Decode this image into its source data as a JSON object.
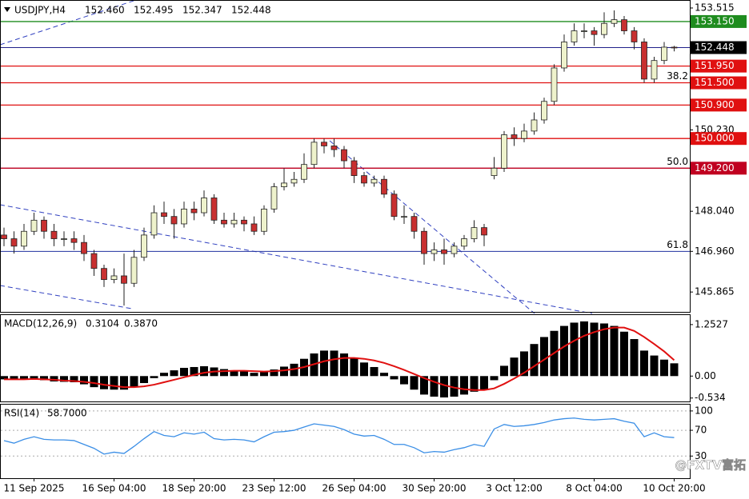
{
  "watermark": "@FXTV富拓",
  "chart_data": [
    {
      "type": "candlestick",
      "title": "USDJPY,H4",
      "categories": [
        null,
        null,
        null,
        "11 Sep 2025",
        null,
        null,
        null,
        null,
        null,
        null,
        null,
        "16 Sep 04:00",
        null,
        null,
        null,
        null,
        null,
        null,
        null,
        "18 Sep 20:00",
        null,
        null,
        null,
        null,
        null,
        null,
        null,
        "23 Sep 12:00",
        null,
        null,
        null,
        null,
        null,
        null,
        null,
        "26 Sep 04:00",
        null,
        null,
        null,
        null,
        null,
        null,
        null,
        "30 Sep 20:00",
        null,
        null,
        null,
        null,
        null,
        null,
        null,
        "3 Oct 12:00",
        null,
        null,
        null,
        null,
        null,
        null,
        null,
        "8 Oct 04:00",
        null,
        null,
        null,
        null,
        null,
        null,
        null,
        "10 Oct 20:00"
      ],
      "open": [
        147.4,
        147.3,
        147.1,
        147.5,
        147.8,
        147.5,
        147.3,
        147.3,
        147.2,
        146.9,
        146.5,
        146.2,
        146.3,
        146.1,
        146.8,
        147.4,
        148.0,
        147.9,
        147.7,
        148.1,
        148.0,
        148.4,
        147.8,
        147.7,
        147.8,
        147.7,
        147.5,
        148.1,
        148.7,
        148.8,
        148.9,
        149.3,
        149.9,
        149.8,
        149.7,
        149.4,
        149.0,
        148.8,
        148.9,
        148.5,
        147.9,
        147.9,
        147.5,
        146.9,
        147.0,
        146.9,
        147.1,
        147.3,
        147.6,
        149.0,
        149.2,
        150.1,
        150.0,
        150.2,
        150.5,
        151.0,
        151.9,
        152.6,
        152.9,
        152.9,
        152.8,
        153.1,
        153.2,
        152.9,
        152.6,
        151.6,
        152.1,
        152.46
      ],
      "open_labels": [
        null,
        null,
        null,
        null,
        null,
        null,
        null,
        null,
        null,
        null,
        null,
        null,
        null,
        null,
        null,
        null,
        null,
        null,
        null,
        null,
        null,
        null,
        null,
        null,
        null,
        null,
        null,
        null,
        null,
        null,
        null,
        null,
        null,
        null,
        null,
        null,
        null,
        null,
        null,
        null,
        null,
        null,
        null,
        null,
        null,
        null,
        null,
        null,
        null,
        null,
        null,
        null,
        null,
        null,
        null,
        null,
        null,
        null,
        null,
        null,
        null,
        null,
        null,
        null,
        null,
        null,
        null,
        "152.460"
      ],
      "high": [
        147.6,
        147.5,
        147.7,
        148.0,
        147.9,
        147.7,
        147.5,
        147.5,
        147.4,
        147.0,
        146.6,
        146.5,
        146.9,
        147.0,
        147.6,
        148.2,
        148.3,
        148.1,
        148.3,
        148.3,
        148.6,
        148.5,
        148.0,
        148.0,
        147.9,
        147.9,
        148.2,
        148.8,
        149.2,
        149.1,
        149.6,
        150.0,
        150.0,
        150.0,
        149.8,
        149.5,
        149.1,
        149.0,
        149.0,
        148.6,
        148.2,
        148.0,
        147.6,
        147.2,
        147.3,
        147.2,
        147.4,
        147.8,
        147.7,
        149.5,
        150.2,
        150.3,
        150.4,
        150.7,
        151.1,
        152.0,
        152.8,
        153.1,
        153.1,
        153.0,
        153.4,
        153.45,
        153.3,
        153.0,
        152.7,
        152.2,
        152.6,
        152.495
      ],
      "low": [
        147.1,
        146.9,
        147.0,
        147.4,
        147.3,
        147.1,
        147.1,
        147.0,
        146.7,
        146.3,
        146.0,
        146.1,
        145.5,
        146.0,
        146.7,
        147.3,
        147.7,
        147.3,
        147.6,
        147.8,
        147.9,
        147.7,
        147.6,
        147.6,
        147.5,
        147.4,
        147.4,
        148.0,
        148.6,
        148.7,
        148.8,
        149.2,
        149.6,
        149.5,
        149.2,
        148.8,
        148.7,
        148.7,
        148.4,
        147.8,
        147.7,
        147.3,
        146.6,
        146.7,
        146.6,
        146.8,
        147.0,
        147.2,
        147.1,
        148.9,
        149.1,
        149.8,
        149.9,
        150.1,
        150.4,
        150.9,
        151.8,
        152.5,
        152.7,
        152.5,
        152.7,
        153.0,
        152.8,
        152.4,
        151.5,
        151.5,
        152.0,
        152.347
      ],
      "close": [
        147.3,
        147.1,
        147.5,
        147.8,
        147.5,
        147.3,
        147.3,
        147.2,
        146.9,
        146.5,
        146.2,
        146.3,
        146.1,
        146.8,
        147.4,
        148.0,
        147.9,
        147.7,
        148.1,
        148.0,
        148.4,
        147.8,
        147.7,
        147.8,
        147.7,
        147.5,
        148.1,
        148.7,
        148.8,
        148.9,
        149.3,
        149.9,
        149.8,
        149.7,
        149.4,
        149.0,
        148.8,
        148.9,
        148.5,
        147.9,
        147.9,
        147.5,
        146.9,
        147.0,
        146.9,
        147.1,
        147.3,
        147.6,
        147.4,
        149.2,
        150.1,
        150.0,
        150.2,
        150.5,
        151.0,
        151.9,
        152.6,
        152.9,
        152.9,
        152.8,
        153.1,
        153.2,
        152.9,
        152.6,
        151.6,
        152.1,
        152.46,
        152.448
      ],
      "up_color": "#eef2cc",
      "down_color": "#c83030",
      "wick_color": "#222222",
      "ylim": [
        145.33,
        153.73
      ],
      "yticks": [
        153.515,
        {
          "value": 150.23,
          "label": "150.230"
        },
        {
          "value": 148.04,
          "label": "148.040"
        },
        {
          "value": 146.96,
          "label": "146.960"
        },
        145.865
      ],
      "levels": [
        {
          "value": 153.15,
          "label": "153.150",
          "color": "#1e8c1e"
        },
        {
          "value": 151.95,
          "label": "151.950",
          "color": "#e01010"
        },
        {
          "value": 151.5,
          "label": "151.500",
          "color": "#e01010"
        },
        {
          "value": 150.9,
          "label": "150.900",
          "color": "#e01010"
        },
        {
          "value": 150.0,
          "label": "150.000",
          "color": "#e01010"
        },
        {
          "value": 149.2,
          "label": "149.200",
          "color": "#c00020"
        }
      ],
      "fib_levels": [
        {
          "label": "38.2",
          "price": 151.5
        },
        {
          "label": "50.0",
          "price": 149.2
        },
        {
          "label": "61.8",
          "price": 146.96
        }
      ],
      "fib_color": "#2030a0",
      "current_color": "#20208a"
    },
    {
      "type": "macd",
      "title": "MACD(12,26,9)",
      "histogram": [
        -0.08,
        -0.08,
        -0.07,
        -0.06,
        -0.1,
        -0.13,
        -0.14,
        -0.15,
        -0.2,
        -0.27,
        -0.32,
        -0.33,
        -0.33,
        -0.27,
        -0.17,
        -0.05,
        0.08,
        0.14,
        0.2,
        0.22,
        0.24,
        0.21,
        0.17,
        0.14,
        0.12,
        0.08,
        0.1,
        0.16,
        0.23,
        0.3,
        0.42,
        0.55,
        0.62,
        0.62,
        0.55,
        0.45,
        0.33,
        0.22,
        0.08,
        -0.08,
        -0.2,
        -0.33,
        -0.45,
        -0.5,
        -0.52,
        -0.5,
        -0.45,
        -0.38,
        -0.33,
        -0.1,
        0.25,
        0.45,
        0.6,
        0.78,
        0.95,
        1.1,
        1.22,
        1.3,
        1.33,
        1.3,
        1.28,
        1.22,
        1.08,
        0.9,
        0.62,
        0.5,
        0.4,
        0.3104
      ],
      "signal": [
        -0.08,
        -0.08,
        -0.08,
        -0.07,
        -0.08,
        -0.09,
        -0.11,
        -0.12,
        -0.14,
        -0.17,
        -0.21,
        -0.24,
        -0.27,
        -0.27,
        -0.25,
        -0.21,
        -0.15,
        -0.09,
        -0.03,
        0.03,
        0.08,
        0.11,
        0.12,
        0.13,
        0.13,
        0.12,
        0.11,
        0.12,
        0.14,
        0.17,
        0.22,
        0.29,
        0.36,
        0.41,
        0.44,
        0.44,
        0.42,
        0.38,
        0.32,
        0.24,
        0.15,
        0.05,
        -0.05,
        -0.14,
        -0.22,
        -0.28,
        -0.32,
        -0.34,
        -0.34,
        -0.3,
        -0.19,
        -0.06,
        0.08,
        0.24,
        0.4,
        0.56,
        0.72,
        0.86,
        0.98,
        1.07,
        1.14,
        1.18,
        1.18,
        1.1,
        0.95,
        0.78,
        0.6,
        0.387
      ],
      "signal_labels": [
        null,
        null,
        null,
        null,
        null,
        null,
        null,
        null,
        null,
        null,
        null,
        null,
        null,
        null,
        null,
        null,
        null,
        null,
        null,
        null,
        null,
        null,
        null,
        null,
        null,
        null,
        null,
        null,
        null,
        null,
        null,
        null,
        null,
        null,
        null,
        null,
        null,
        null,
        null,
        null,
        null,
        null,
        null,
        null,
        null,
        null,
        null,
        null,
        null,
        null,
        null,
        null,
        null,
        null,
        null,
        null,
        null,
        null,
        null,
        null,
        null,
        null,
        null,
        null,
        null,
        null,
        null,
        "0.3870"
      ],
      "histogram_color": "#000000",
      "signal_color": "#e01010",
      "ylim": [
        -0.617,
        1.484
      ],
      "yticks": [
        1.2527,
        {
          "value": 0,
          "label": "0.00"
        },
        -0.534
      ]
    },
    {
      "type": "rsi",
      "title": "RSI(14)",
      "values": [
        54,
        50,
        56,
        60,
        56,
        55,
        55,
        54,
        48,
        42,
        33,
        36,
        34,
        45,
        57,
        68,
        62,
        60,
        66,
        64,
        67,
        57,
        55,
        56,
        55,
        52,
        60,
        67,
        68,
        70,
        75,
        80,
        78,
        76,
        71,
        64,
        61,
        62,
        56,
        48,
        48,
        43,
        35,
        37,
        36,
        40,
        43,
        48,
        45,
        72,
        79,
        76,
        77,
        79,
        82,
        86,
        88,
        89,
        87,
        86,
        87,
        88,
        84,
        81,
        60,
        66,
        60,
        58.7
      ],
      "value_labels": [
        null,
        null,
        null,
        null,
        null,
        null,
        null,
        null,
        null,
        null,
        null,
        null,
        null,
        null,
        null,
        null,
        null,
        null,
        null,
        null,
        null,
        null,
        null,
        null,
        null,
        null,
        null,
        null,
        null,
        null,
        null,
        null,
        null,
        null,
        null,
        null,
        null,
        null,
        null,
        null,
        null,
        null,
        null,
        null,
        null,
        null,
        null,
        null,
        null,
        null,
        null,
        null,
        null,
        null,
        null,
        null,
        null,
        null,
        null,
        null,
        null,
        null,
        null,
        null,
        null,
        null,
        null,
        "58.7000"
      ],
      "color": "#3a8ee6",
      "ylim": [
        -4.4,
        109.8
      ],
      "yticks": [
        100,
        70,
        30
      ],
      "grid": true
    }
  ]
}
